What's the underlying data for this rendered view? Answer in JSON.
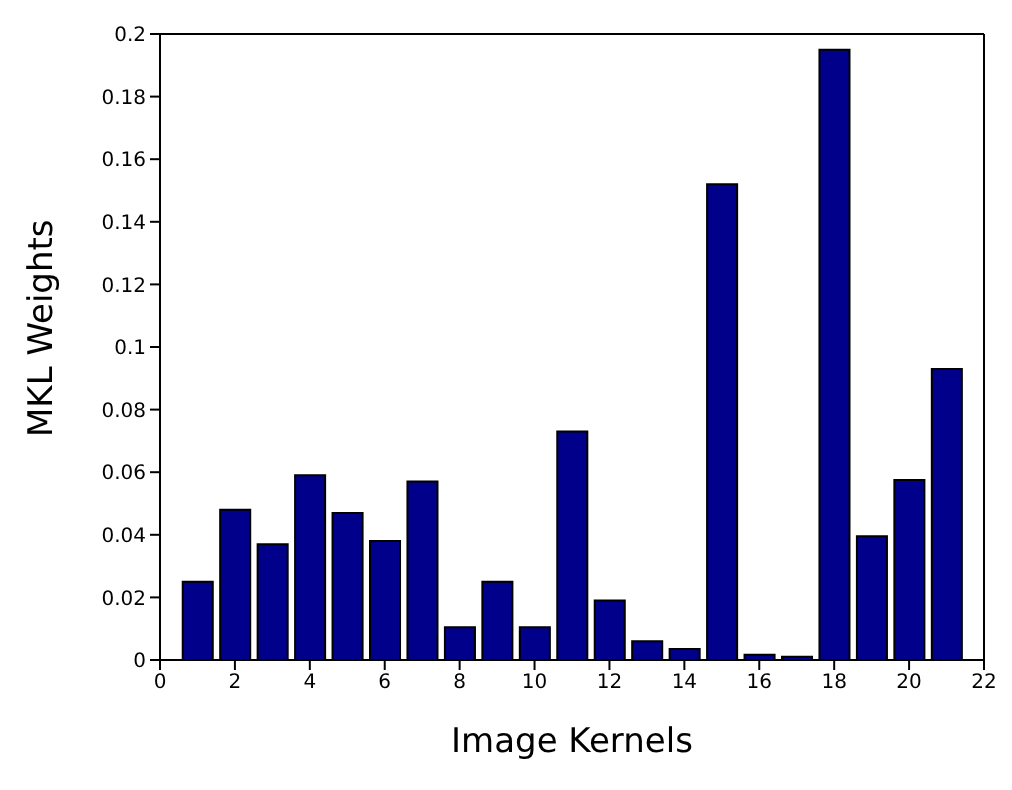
{
  "chart_data": {
    "type": "bar",
    "xlabel": "Image Kernels",
    "ylabel": "MKL Weights",
    "x": [
      1,
      2,
      3,
      4,
      5,
      6,
      7,
      8,
      9,
      10,
      11,
      12,
      13,
      14,
      15,
      16,
      17,
      18,
      19,
      20,
      21
    ],
    "values": [
      0.025,
      0.048,
      0.037,
      0.059,
      0.047,
      0.038,
      0.057,
      0.0105,
      0.025,
      0.0105,
      0.073,
      0.019,
      0.006,
      0.0035,
      0.152,
      0.0017,
      0.001,
      0.195,
      0.0395,
      0.0575,
      0.093
    ],
    "color": "#00008b",
    "xlim": [
      0,
      22
    ],
    "xticks": [
      0,
      2,
      4,
      6,
      8,
      10,
      12,
      14,
      16,
      18,
      20,
      22
    ],
    "ylim": [
      0,
      0.2
    ],
    "yticks": [
      0,
      0.02,
      0.04,
      0.06,
      0.08,
      0.1,
      0.12,
      0.14,
      0.16,
      0.18,
      0.2
    ],
    "grid": false,
    "legend": false
  }
}
